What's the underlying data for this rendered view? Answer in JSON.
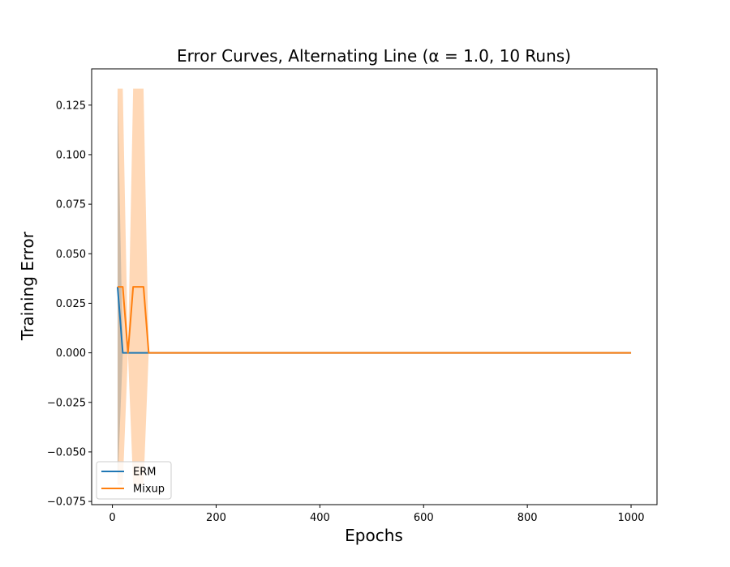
{
  "chart_data": {
    "type": "line",
    "title": "Error Curves, Alternating Line (α = 1.0, 10 Runs)",
    "xlabel": "Epochs",
    "ylabel": "Training Error",
    "xlim": [
      -40,
      1050
    ],
    "ylim": [
      -0.0766,
      0.1433
    ],
    "xticks": [
      0,
      200,
      400,
      600,
      800,
      1000
    ],
    "xtick_labels": [
      "0",
      "200",
      "400",
      "600",
      "800",
      "1000"
    ],
    "yticks": [
      -0.075,
      -0.05,
      -0.025,
      0.0,
      0.025,
      0.05,
      0.075,
      0.1,
      0.125
    ],
    "ytick_labels": [
      "−0.075",
      "−0.050",
      "−0.025",
      "0.000",
      "0.025",
      "0.050",
      "0.075",
      "0.100",
      "0.125"
    ],
    "grid": false,
    "legend_position": "lower-left",
    "series": [
      {
        "name": "ERM",
        "color": "#1f77b4",
        "x": [
          10,
          20,
          30,
          40,
          50,
          60,
          70,
          80,
          90,
          100,
          1000
        ],
        "values": [
          0.0333,
          0,
          0,
          0,
          0,
          0,
          0,
          0,
          0,
          0,
          0
        ],
        "band_lower": [
          -0.0667,
          0,
          0,
          0,
          0,
          0,
          0,
          0,
          0,
          0,
          0
        ],
        "band_upper": [
          0.1333,
          0,
          0,
          0,
          0,
          0,
          0,
          0,
          0,
          0,
          0
        ],
        "band_color": "#1f77b4"
      },
      {
        "name": "Mixup",
        "color": "#ff7f0e",
        "x": [
          10,
          20,
          30,
          40,
          50,
          60,
          70,
          80,
          90,
          100,
          1000
        ],
        "values": [
          0.0333,
          0.0333,
          0,
          0.0333,
          0.0333,
          0.0333,
          0,
          0,
          0,
          0,
          0
        ],
        "band_lower": [
          -0.0667,
          -0.0667,
          0,
          -0.0667,
          -0.0667,
          -0.0667,
          0,
          0,
          0,
          0,
          0
        ],
        "band_upper": [
          0.1333,
          0.1333,
          0,
          0.1333,
          0.1333,
          0.1333,
          0,
          0,
          0,
          0,
          0
        ],
        "band_color": "#ff7f0e"
      }
    ]
  }
}
